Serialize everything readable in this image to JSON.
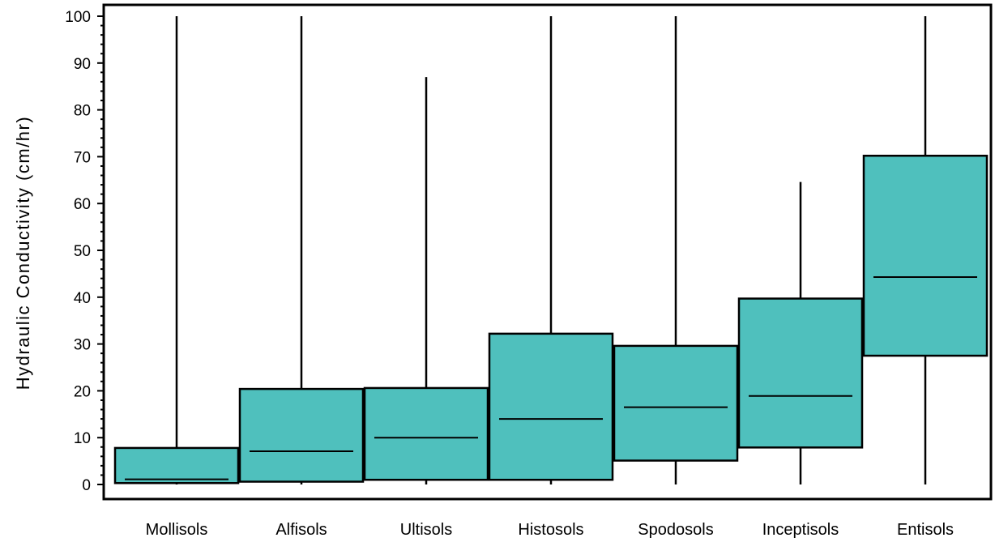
{
  "chart_data": {
    "type": "boxplot",
    "title": "",
    "xlabel": "",
    "ylabel": "Hydraulic Conductivity (cm/hr)",
    "ylim": [
      0,
      100
    ],
    "yticks": [
      "0",
      "10",
      "20",
      "30",
      "40",
      "50",
      "60",
      "70",
      "80",
      "90",
      "100"
    ],
    "grid": false,
    "categories": [
      "Mollisols",
      "Alfisols",
      "Ultisols",
      "Histosols",
      "Spodosols",
      "Inceptisols",
      "Entisols"
    ],
    "boxes": [
      {
        "min": 0,
        "q1": 0.3,
        "median": 1.1,
        "q3": 7.8,
        "max": 100
      },
      {
        "min": 0,
        "q1": 0.6,
        "median": 7.1,
        "q3": 20.4,
        "max": 100
      },
      {
        "min": 0,
        "q1": 1.0,
        "median": 10.0,
        "q3": 20.6,
        "max": 87
      },
      {
        "min": 0,
        "q1": 1.0,
        "median": 14.0,
        "q3": 32.2,
        "max": 100
      },
      {
        "min": 0,
        "q1": 5.1,
        "median": 16.5,
        "q3": 29.6,
        "max": 100
      },
      {
        "min": 0,
        "q1": 7.9,
        "median": 18.9,
        "q3": 39.7,
        "max": 64.6
      },
      {
        "min": 0,
        "q1": 27.5,
        "median": 44.3,
        "q3": 70.2,
        "max": 100
      }
    ],
    "box_color": "#4fc0bd"
  }
}
